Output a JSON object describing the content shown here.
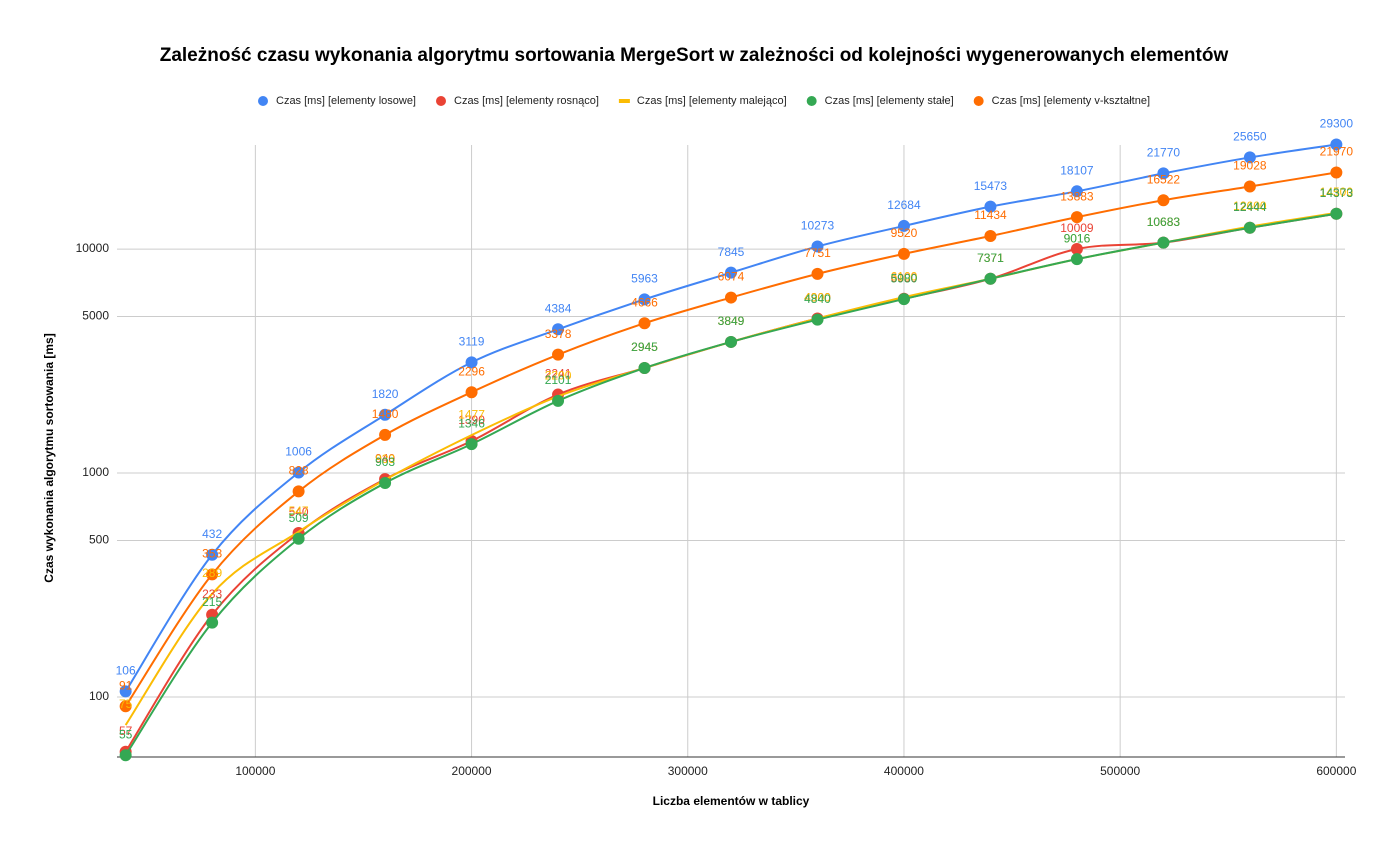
{
  "chart_data": {
    "type": "line",
    "title": "Zależność czasu wykonania algorytmu sortowania MergeSort w zależności od kolejności wygenerowanych elementów",
    "xlabel": "Liczba elementów w tablicy",
    "ylabel": "Czas wykonania algorytmu sortowania [ms]",
    "x": [
      40000,
      80000,
      120000,
      160000,
      200000,
      240000,
      280000,
      320000,
      360000,
      400000,
      440000,
      480000,
      520000,
      560000,
      600000
    ],
    "xlim": [
      36000,
      604000
    ],
    "xticks": [
      100000,
      200000,
      300000,
      400000,
      500000,
      600000
    ],
    "ylim": [
      54,
      31000
    ],
    "yticks": [
      100,
      500,
      1000,
      5000,
      10000
    ],
    "log_y": true,
    "grid": true,
    "legend": "top",
    "series": [
      {
        "name": "Czas [ms] [elementy losowe]",
        "color": "#4285f4",
        "marker": true,
        "values": [
          106,
          432,
          1006,
          1820,
          3119,
          4384,
          5963,
          7845,
          10273,
          12684,
          15473,
          18107,
          21770,
          25650,
          29300
        ]
      },
      {
        "name": "Czas [ms] [elementy rosnąco]",
        "color": "#ea4335",
        "marker": true,
        "values": [
          57,
          233,
          540,
          940,
          1390,
          2241,
          2945,
          3849,
          4900,
          6000,
          7371,
          10009,
          10683,
          12444,
          14373
        ]
      },
      {
        "name": "Czas [ms] [elementy malejąco]",
        "color": "#fbbc04",
        "marker": false,
        "values": [
          75,
          289,
          547,
          933,
          1477,
          2200,
          2945,
          3849,
          4900,
          6100,
          7371,
          9016,
          10683,
          12600,
          14500
        ]
      },
      {
        "name": "Czas [ms] [elementy stałe]",
        "color": "#34a853",
        "marker": true,
        "values": [
          55,
          215,
          509,
          903,
          1346,
          2101,
          2945,
          3849,
          4840,
          5980,
          7371,
          9016,
          10683,
          12444,
          14373
        ]
      },
      {
        "name": "Czas [ms] [elementy v-kształtne]",
        "color": "#ff6d01",
        "marker": true,
        "values": [
          91,
          353,
          828,
          1480,
          2296,
          3378,
          4666,
          6074,
          7751,
          9520,
          11434,
          13883,
          16522,
          19028,
          21970
        ]
      }
    ]
  }
}
